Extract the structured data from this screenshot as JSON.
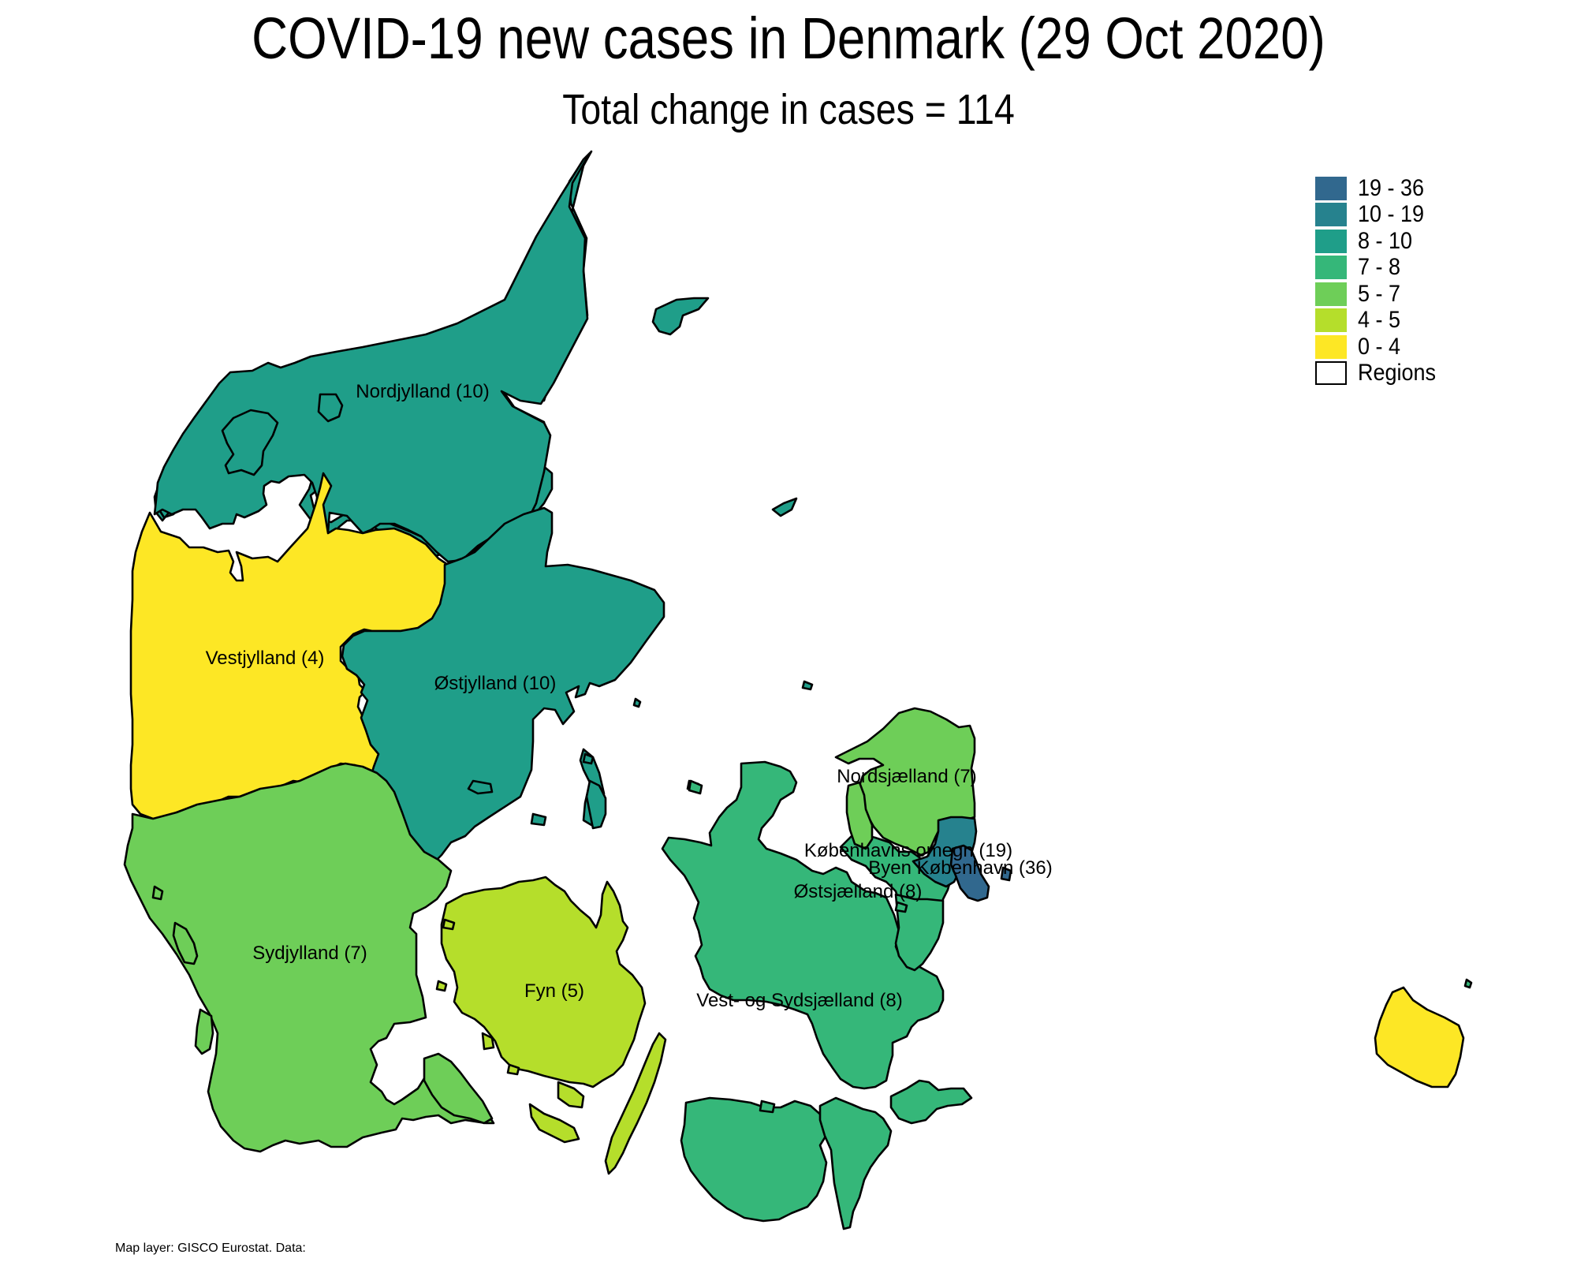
{
  "title": "COVID-19 new cases in Denmark (29 Oct 2020)",
  "subtitle": "Total change in cases  = 114",
  "caption": "Map layer: GISCO Eurostat. Data:",
  "legend": {
    "items": [
      {
        "label": "19 - 36",
        "color": "#31688e"
      },
      {
        "label": "10 - 19",
        "color": "#26828e"
      },
      {
        "label": "8 - 10",
        "color": "#1f9e89"
      },
      {
        "label": "7 - 8",
        "color": "#35b779"
      },
      {
        "label": "5 - 7",
        "color": "#6ece58"
      },
      {
        "label": "4 - 5",
        "color": "#b5de2b"
      },
      {
        "label": "0 - 4",
        "color": "#fde725"
      },
      {
        "label": "Regions",
        "color": "#ffffff"
      }
    ]
  },
  "regions": {
    "nordjylland": {
      "label": "Nordjylland (10)",
      "cases": 10,
      "color": "#1f9e89"
    },
    "vestjylland": {
      "label": "Vestjylland (4)",
      "cases": 4,
      "color": "#fde725"
    },
    "ostjylland": {
      "label": "Østjylland (10)",
      "cases": 10,
      "color": "#1f9e89"
    },
    "sydjylland": {
      "label": "Sydjylland (7)",
      "cases": 7,
      "color": "#6ece58"
    },
    "fyn": {
      "label": "Fyn (5)",
      "cases": 5,
      "color": "#b5de2b"
    },
    "vest_sydsjaelland": {
      "label": "Vest- og Sydsjælland (8)",
      "cases": 8,
      "color": "#35b779"
    },
    "ostsjaelland": {
      "label": "Østsjælland (8)",
      "cases": 8,
      "color": "#35b779"
    },
    "nordsjaelland": {
      "label": "Nordsjælland (7)",
      "cases": 7,
      "color": "#6ece58"
    },
    "kobenhavns_omegn": {
      "label": "Københavns omegn (19)",
      "cases": 19,
      "color": "#26828e"
    },
    "byen_kobenhavn": {
      "label": "Byen København (36)",
      "cases": 36,
      "color": "#31688e"
    },
    "bornholm": {
      "cases": 4,
      "color": "#fde725"
    }
  }
}
